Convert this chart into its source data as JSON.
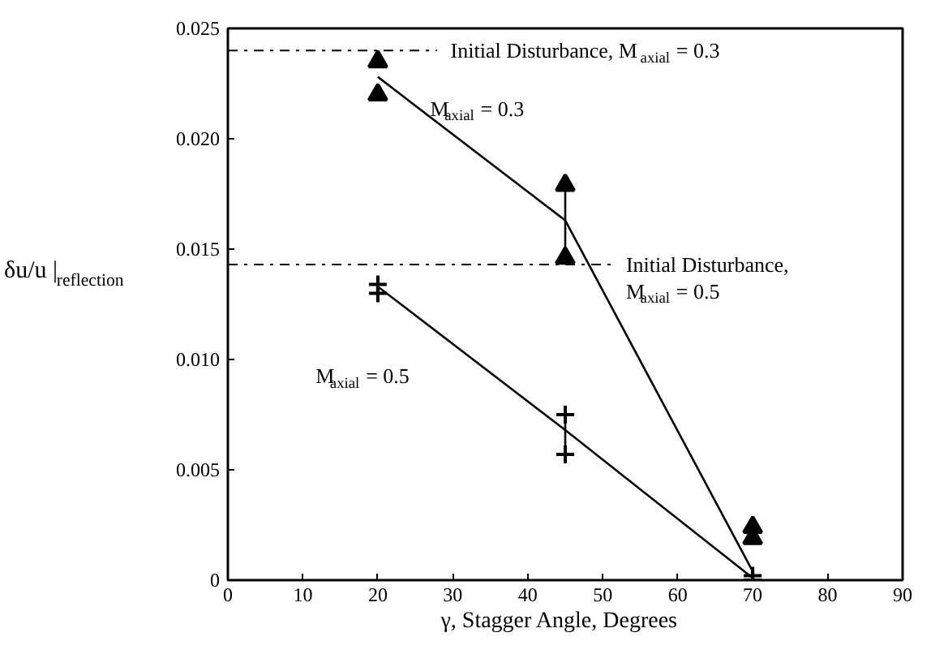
{
  "chart_data": {
    "type": "scatter",
    "xlabel": "γ,  Stagger Angle,  Degrees",
    "ylabel": "δu/u |$_{reflection}$",
    "xlim": [
      0,
      90
    ],
    "xticks": [
      0,
      10,
      20,
      30,
      40,
      50,
      60,
      70,
      80,
      90
    ],
    "ylim": [
      0,
      0.025
    ],
    "yticks": [
      0,
      {
        "value": 0.005,
        "label": "0.005"
      },
      {
        "value": 0.01,
        "label": "0.010"
      },
      {
        "value": 0.015,
        "label": "0.015"
      },
      {
        "value": 0.02,
        "label": "0.020"
      },
      0.025
    ],
    "grid": false,
    "series": [
      {
        "marker": "triangle",
        "color": "#000000",
        "x": [
          20,
          20,
          45,
          45,
          70,
          70
        ],
        "values": [
          0.0235,
          0.022,
          0.0179,
          0.0146,
          0.0024,
          0.0019
        ]
      },
      {
        "type": "line",
        "color": "#000000",
        "x": [
          20,
          45,
          70
        ],
        "values": [
          0.0228,
          0.0163,
          0.0004
        ]
      },
      {
        "type": "line",
        "color": "#000000",
        "x": [
          45,
          45
        ],
        "values": [
          0.0146,
          0.0179
        ]
      },
      {
        "marker": "cross",
        "color": "#000000",
        "x": [
          20,
          20,
          45,
          45,
          70,
          70
        ],
        "values": [
          0.0134,
          0.013,
          0.0075,
          0.0057,
          0.0002,
          0.0
        ]
      },
      {
        "type": "line",
        "color": "#000000",
        "x": [
          20,
          45,
          70
        ],
        "values": [
          0.0133,
          0.0068,
          0.0001
        ]
      },
      {
        "type": "line",
        "color": "#000000",
        "x": [
          45,
          45
        ],
        "values": [
          0.0057,
          0.0075
        ]
      }
    ],
    "ref_lines": [
      {
        "axis": "y",
        "value": 0.024,
        "line_style": "dashdot",
        "color": "#000000"
      },
      {
        "axis": "y",
        "value": 0.0143,
        "line_style": "dashdot",
        "color": "#000000"
      }
    ],
    "annotations": [
      "Initial Disturbance, M$_{axial}$ = 0.3",
      "Initial Disturbance,\nM$_{axial}$ = 0.5",
      "M$_{axial}$ = 0.3",
      "M$_{axial}$ = 0.5"
    ]
  }
}
